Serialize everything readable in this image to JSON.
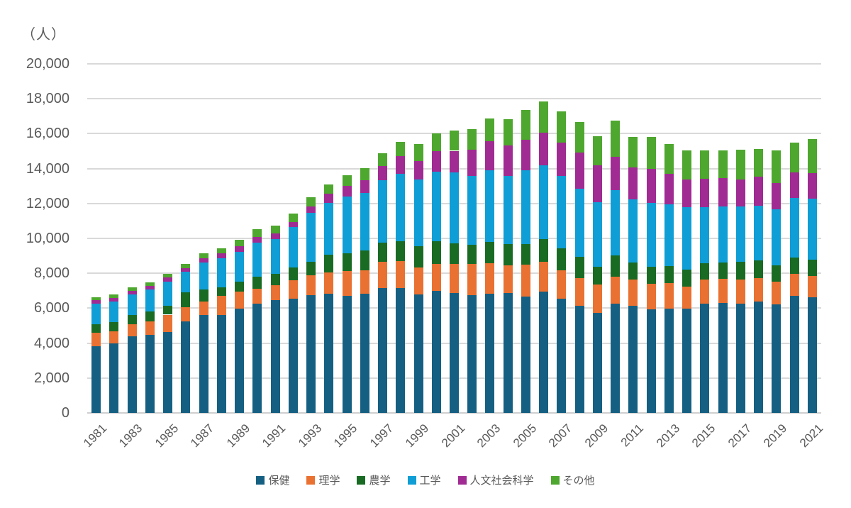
{
  "colors": {
    "background": "#ffffff",
    "grid": "#d9d9d9",
    "axis_text": "#595959"
  },
  "chart_data": {
    "type": "bar",
    "stacked": true,
    "title": "",
    "unit_label": "（人）",
    "xlabel": "",
    "ylabel": "（人）",
    "ylim": [
      0,
      20000
    ],
    "y_tick_step": 2000,
    "y_tick_labels": [
      "0",
      "2,000",
      "4,000",
      "6,000",
      "8,000",
      "10,000",
      "12,000",
      "14,000",
      "16,000",
      "18,000",
      "20,000"
    ],
    "grid": true,
    "legend_position": "bottom",
    "categories": [
      1981,
      1982,
      1983,
      1984,
      1985,
      1986,
      1987,
      1988,
      1989,
      1990,
      1991,
      1992,
      1993,
      1994,
      1995,
      1996,
      1997,
      1998,
      1999,
      2000,
      2001,
      2002,
      2003,
      2004,
      2005,
      2006,
      2007,
      2008,
      2009,
      2010,
      2011,
      2012,
      2013,
      2014,
      2015,
      2016,
      2017,
      2018,
      2019,
      2020,
      2021
    ],
    "x_tick_labels": [
      "1981",
      "1983",
      "1985",
      "1987",
      "1989",
      "1991",
      "1993",
      "1995",
      "1997",
      "1999",
      "2001",
      "2003",
      "2005",
      "2007",
      "2009",
      "2011",
      "2013",
      "2015",
      "2017",
      "2019",
      "2021"
    ],
    "series": [
      {
        "name": "保健",
        "color": "#156082",
        "values": [
          3820,
          3970,
          4380,
          4490,
          4650,
          5230,
          5600,
          5620,
          5960,
          6270,
          6460,
          6550,
          6750,
          6840,
          6710,
          6820,
          7150,
          7150,
          6790,
          6980,
          6890,
          6740,
          6810,
          6850,
          6670,
          6940,
          6540,
          6130,
          5720,
          6240,
          6130,
          5940,
          5990,
          5960,
          6270,
          6300,
          6270,
          6370,
          6200,
          6700,
          6640
        ]
      },
      {
        "name": "理学",
        "color": "#E97132",
        "values": [
          780,
          710,
          700,
          770,
          980,
          840,
          790,
          1080,
          980,
          840,
          850,
          1070,
          1140,
          1190,
          1400,
          1360,
          1490,
          1530,
          1540,
          1560,
          1630,
          1800,
          1760,
          1590,
          1840,
          1710,
          1630,
          1600,
          1630,
          1560,
          1530,
          1450,
          1440,
          1290,
          1360,
          1380,
          1380,
          1360,
          1330,
          1260,
          1220
        ]
      },
      {
        "name": "農学",
        "color": "#196B24",
        "values": [
          500,
          540,
          540,
          540,
          490,
          860,
          700,
          480,
          580,
          680,
          650,
          720,
          760,
          1020,
          1020,
          1110,
          1130,
          1140,
          1220,
          1290,
          1180,
          1110,
          1230,
          1220,
          1180,
          1320,
          1260,
          1220,
          1030,
          1220,
          950,
          990,
          1000,
          950,
          950,
          950,
          1020,
          990,
          920,
          950,
          910
        ]
      },
      {
        "name": "工学",
        "color": "#0F9ED5",
        "values": [
          1160,
          1150,
          1150,
          1260,
          1410,
          1140,
          1520,
          1690,
          1720,
          1970,
          1990,
          2300,
          2800,
          2980,
          3280,
          3330,
          3550,
          3880,
          3830,
          4000,
          4070,
          3930,
          4120,
          3910,
          4230,
          4200,
          4140,
          3910,
          3690,
          3730,
          3620,
          3660,
          3530,
          3590,
          3210,
          3200,
          3160,
          3170,
          3200,
          3390,
          3500
        ]
      },
      {
        "name": "人文社会科学",
        "color": "#A02B93",
        "values": [
          220,
          230,
          240,
          220,
          240,
          220,
          250,
          270,
          310,
          340,
          340,
          310,
          370,
          540,
          580,
          710,
          810,
          1000,
          1040,
          1150,
          1250,
          1490,
          1630,
          1760,
          1730,
          1900,
          1900,
          2060,
          2100,
          1930,
          1840,
          1950,
          1740,
          1590,
          1630,
          1630,
          1550,
          1630,
          1540,
          1500,
          1460
        ]
      },
      {
        "name": "その他",
        "color": "#4EA72E",
        "values": [
          140,
          180,
          190,
          180,
          200,
          230,
          270,
          310,
          370,
          410,
          430,
          460,
          540,
          500,
          610,
          680,
          750,
          810,
          990,
          1040,
          1150,
          1190,
          1330,
          1490,
          1720,
          1760,
          1790,
          1760,
          1670,
          2070,
          1760,
          1840,
          1700,
          1660,
          1620,
          1580,
          1690,
          1600,
          1870,
          1700,
          1970
        ]
      }
    ]
  }
}
